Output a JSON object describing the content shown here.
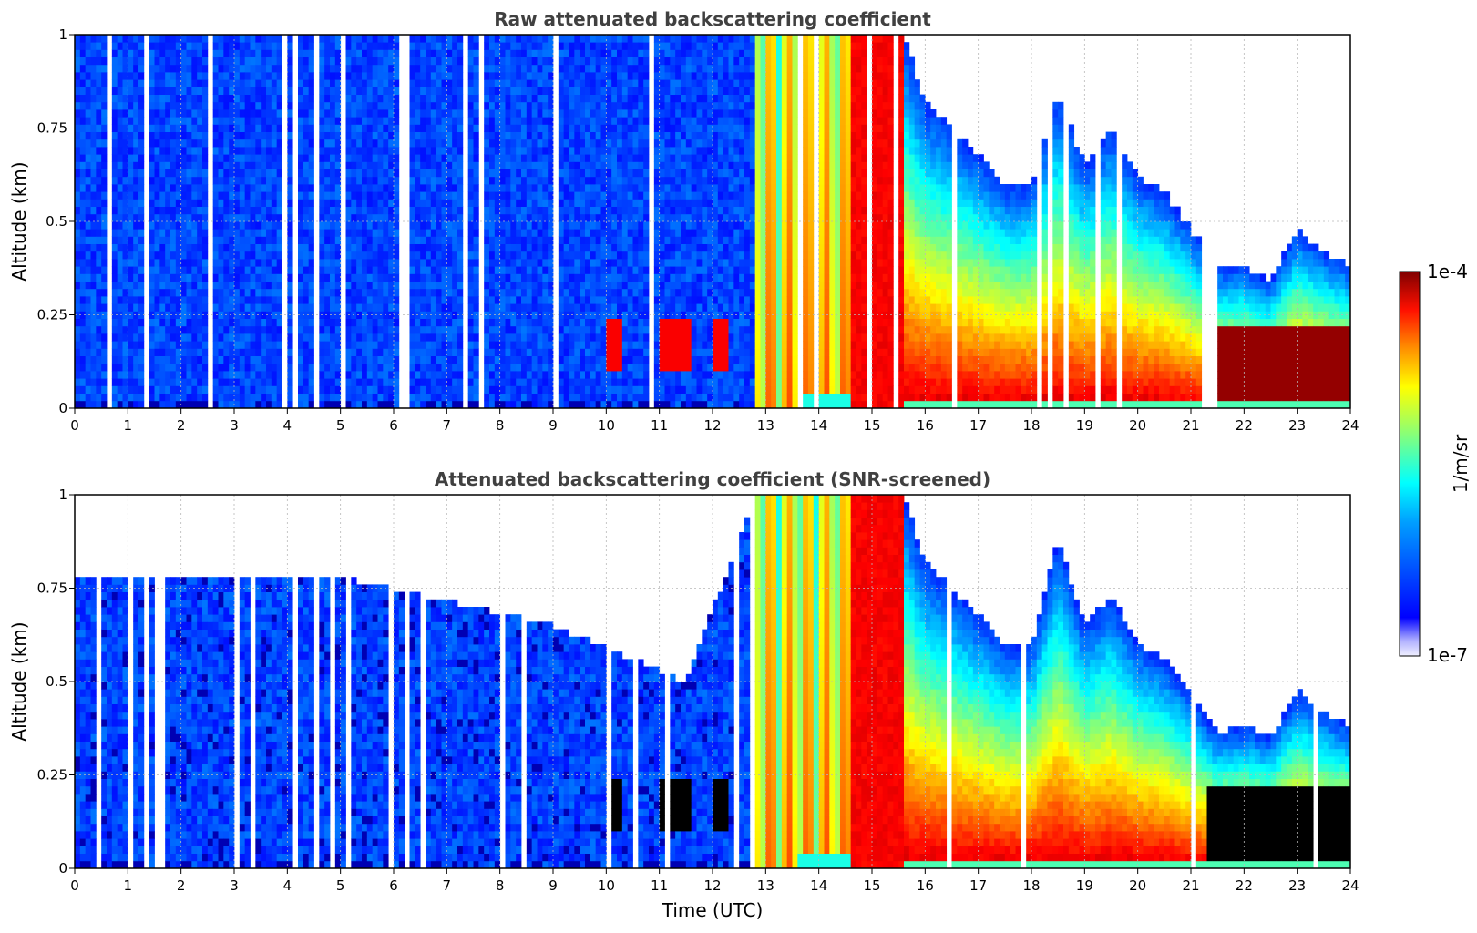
{
  "chart_data": {
    "type": "heatmap",
    "colorbar": {
      "label": "1/m/sr",
      "min_label": "1e-7",
      "max_label": "1e-4",
      "min": 1e-07,
      "max": 0.0001,
      "scale": "log",
      "colormap": "jet",
      "nan_color": "#ffffff",
      "screened_color": "#000000"
    },
    "xlabel": "Time (UTC)",
    "xlim": [
      0,
      24
    ],
    "xticks": [
      "0",
      "1",
      "2",
      "3",
      "4",
      "5",
      "6",
      "7",
      "8",
      "9",
      "10",
      "11",
      "12",
      "13",
      "14",
      "15",
      "16",
      "17",
      "18",
      "19",
      "20",
      "21",
      "22",
      "23",
      "24"
    ],
    "ylabel": "Altitude (km)",
    "ylim": [
      0,
      1
    ],
    "yticks": [
      "0",
      "0.25",
      "0.5",
      "0.75",
      "1"
    ],
    "panels": [
      {
        "title": "Raw attenuated backscattering coefficient",
        "screened": false,
        "top_profile": {
          "time": [
            0,
            12.8,
            13.0,
            15.6,
            16.0,
            17.0,
            17.5,
            18.0,
            18.5,
            19.0,
            19.5,
            20.0,
            20.5,
            21.0,
            21.5,
            22.0,
            22.5,
            23.0,
            23.5,
            24.0
          ],
          "altitude": [
            1,
            1,
            1,
            1,
            0.82,
            0.68,
            0.6,
            0.6,
            0.85,
            0.65,
            0.75,
            0.62,
            0.58,
            0.48,
            0.38,
            0.38,
            0.34,
            0.48,
            0.42,
            0.38
          ]
        }
      },
      {
        "title": "Attenuated backscattering coefficient (SNR-screened)",
        "screened": true,
        "top_profile": {
          "time": [
            0,
            5,
            9,
            11.5,
            12.8,
            13.0,
            15.6,
            16.0,
            17.0,
            17.5,
            18.0,
            18.5,
            19.0,
            19.5,
            20.0,
            20.5,
            21.0,
            21.5,
            22.0,
            22.5,
            23.0,
            23.5,
            24.0
          ],
          "altitude": [
            0.78,
            0.78,
            0.65,
            0.5,
            1,
            1,
            1,
            0.82,
            0.68,
            0.6,
            0.6,
            0.88,
            0.65,
            0.73,
            0.6,
            0.56,
            0.47,
            0.36,
            0.38,
            0.35,
            0.48,
            0.42,
            0.38
          ]
        }
      }
    ],
    "features": {
      "aerosol_layer_altitude": [
        0.0,
        0.25
      ],
      "dense_layer_times": [
        [
          10.0,
          10.3
        ],
        [
          11.0,
          11.6
        ],
        [
          12.0,
          12.3
        ]
      ],
      "opaque_cloud_interval": [
        14.6,
        15.6
      ],
      "boundary_layer_max_log": -4.0
    }
  }
}
